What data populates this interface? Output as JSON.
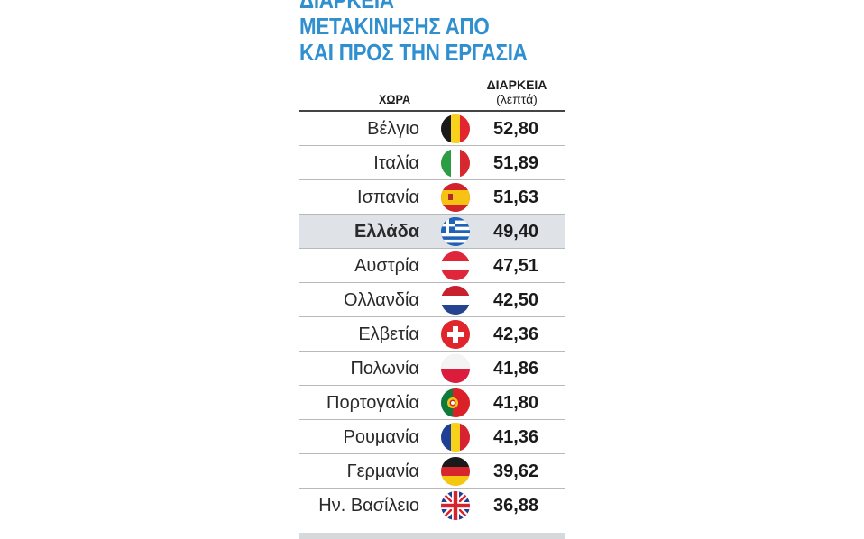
{
  "title": [
    "ΔΙΑΡΚΕΙΑ",
    "ΜΕΤΑΚΙΝΗΣΗΣ ΑΠΟ",
    "ΚΑΙ ΠΡΟΣ ΤΗΝ ΕΡΓΑΣΙΑ"
  ],
  "header": {
    "country": "ΧΩΡΑ",
    "duration": "ΔΙΑΡΚΕΙΑ",
    "unit": "(λεπτά)"
  },
  "colors": {
    "title": "#2f8fcf",
    "highlight_row": "#dfe3e8"
  },
  "chart_data": {
    "type": "table",
    "columns": [
      "ΧΩΡΑ",
      "ΔΙΑΡΚΕΙΑ (λεπτά)"
    ],
    "rows": [
      {
        "country": "Βέλγιο",
        "value": "52,80",
        "flag": "belgium-flag-icon"
      },
      {
        "country": "Ιταλία",
        "value": "51,89",
        "flag": "italy-flag-icon"
      },
      {
        "country": "Ισπανία",
        "value": "51,63",
        "flag": "spain-flag-icon"
      },
      {
        "country": "Ελλάδα",
        "value": "49,40",
        "flag": "greece-flag-icon",
        "highlight": true
      },
      {
        "country": "Αυστρία",
        "value": "47,51",
        "flag": "austria-flag-icon"
      },
      {
        "country": "Ολλανδία",
        "value": "42,50",
        "flag": "netherlands-flag-icon"
      },
      {
        "country": "Ελβετία",
        "value": "42,36",
        "flag": "switzerland-flag-icon"
      },
      {
        "country": "Πολωνία",
        "value": "41,86",
        "flag": "poland-flag-icon"
      },
      {
        "country": "Πορτογαλία",
        "value": "41,80",
        "flag": "portugal-flag-icon"
      },
      {
        "country": "Ρουμανία",
        "value": "41,36",
        "flag": "romania-flag-icon"
      },
      {
        "country": "Γερμανία",
        "value": "39,62",
        "flag": "germany-flag-icon"
      },
      {
        "country": "Ην. Βασίλειο",
        "value": "36,88",
        "flag": "uk-flag-icon"
      }
    ]
  }
}
